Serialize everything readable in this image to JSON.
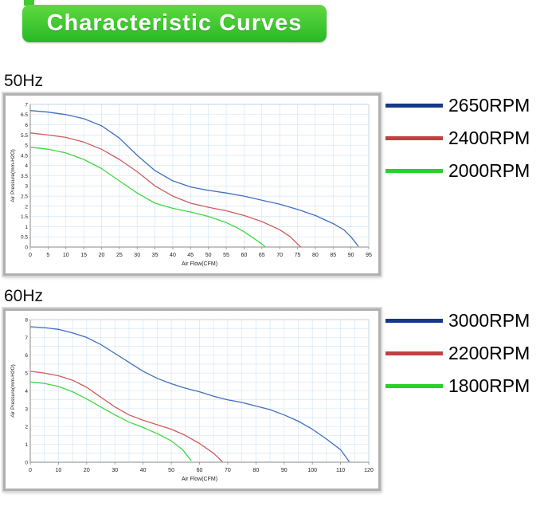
{
  "header": {
    "title": "Characteristic Curves",
    "bg_color": "#3ecb2e",
    "text_color": "#ffffff"
  },
  "sections": [
    {
      "label": "50Hz"
    },
    {
      "label": "60Hz"
    }
  ],
  "chart_data": [
    {
      "type": "line",
      "title": "50Hz",
      "xlabel": "Air Flow(CFM)",
      "ylabel": "Air Pressure(mm-H2O)",
      "xlim": [
        0,
        95
      ],
      "ylim": [
        0,
        7
      ],
      "xticks": [
        0,
        5,
        10,
        15,
        20,
        25,
        30,
        35,
        40,
        45,
        50,
        55,
        60,
        65,
        70,
        75,
        80,
        85,
        90,
        95
      ],
      "yticks": [
        0,
        0.5,
        1,
        1.5,
        2,
        2.5,
        3,
        3.5,
        4,
        4.5,
        5,
        5.5,
        6,
        6.5,
        7
      ],
      "xgrid_step": 5,
      "ygrid_step": 0.5,
      "grid_color": "#cfe3f1",
      "legend_position": "right",
      "series": [
        {
          "name": "2650RPM",
          "color": "#3f6fbf",
          "swatch_color": "#15388a",
          "points": [
            [
              0,
              6.7
            ],
            [
              5,
              6.62
            ],
            [
              10,
              6.5
            ],
            [
              15,
              6.3
            ],
            [
              20,
              5.95
            ],
            [
              25,
              5.35
            ],
            [
              30,
              4.5
            ],
            [
              35,
              3.75
            ],
            [
              40,
              3.25
            ],
            [
              45,
              2.95
            ],
            [
              50,
              2.78
            ],
            [
              55,
              2.65
            ],
            [
              60,
              2.5
            ],
            [
              65,
              2.3
            ],
            [
              70,
              2.1
            ],
            [
              75,
              1.85
            ],
            [
              80,
              1.55
            ],
            [
              85,
              1.15
            ],
            [
              88,
              0.85
            ],
            [
              90,
              0.5
            ],
            [
              92,
              0.05
            ]
          ]
        },
        {
          "name": "2400RPM",
          "color": "#d15b5b",
          "swatch_color": "#c24040",
          "points": [
            [
              0,
              5.6
            ],
            [
              5,
              5.5
            ],
            [
              10,
              5.38
            ],
            [
              15,
              5.15
            ],
            [
              20,
              4.8
            ],
            [
              25,
              4.3
            ],
            [
              30,
              3.7
            ],
            [
              35,
              3.0
            ],
            [
              40,
              2.5
            ],
            [
              45,
              2.15
            ],
            [
              50,
              1.95
            ],
            [
              55,
              1.78
            ],
            [
              60,
              1.55
            ],
            [
              65,
              1.25
            ],
            [
              70,
              0.85
            ],
            [
              73,
              0.5
            ],
            [
              75,
              0.15
            ],
            [
              76,
              0.0
            ]
          ]
        },
        {
          "name": "2000RPM",
          "color": "#3fd83f",
          "swatch_color": "#28d228",
          "points": [
            [
              0,
              4.9
            ],
            [
              5,
              4.8
            ],
            [
              10,
              4.62
            ],
            [
              15,
              4.3
            ],
            [
              20,
              3.85
            ],
            [
              25,
              3.25
            ],
            [
              30,
              2.65
            ],
            [
              35,
              2.15
            ],
            [
              40,
              1.9
            ],
            [
              45,
              1.72
            ],
            [
              50,
              1.5
            ],
            [
              55,
              1.2
            ],
            [
              58,
              0.95
            ],
            [
              60,
              0.75
            ],
            [
              63,
              0.4
            ],
            [
              65,
              0.15
            ],
            [
              66,
              0.0
            ]
          ]
        }
      ]
    },
    {
      "type": "line",
      "title": "60Hz",
      "xlabel": "Air Flow(CFM)",
      "ylabel": "Air Pressure(mm-H2O)",
      "xlim": [
        0,
        120
      ],
      "ylim": [
        0,
        8
      ],
      "xticks": [
        0,
        10,
        20,
        30,
        40,
        50,
        60,
        70,
        80,
        90,
        100,
        110,
        120
      ],
      "yticks": [
        0,
        1,
        2,
        3,
        4,
        5,
        6,
        7,
        8
      ],
      "xgrid_step": 5,
      "ygrid_step": 0.5,
      "grid_color": "#cfe3f1",
      "legend_position": "right",
      "series": [
        {
          "name": "3000RPM",
          "color": "#3f6fbf",
          "swatch_color": "#15388a",
          "points": [
            [
              0,
              7.6
            ],
            [
              5,
              7.55
            ],
            [
              10,
              7.45
            ],
            [
              15,
              7.25
            ],
            [
              20,
              7.0
            ],
            [
              25,
              6.6
            ],
            [
              30,
              6.1
            ],
            [
              35,
              5.6
            ],
            [
              40,
              5.1
            ],
            [
              45,
              4.7
            ],
            [
              50,
              4.4
            ],
            [
              55,
              4.15
            ],
            [
              60,
              3.95
            ],
            [
              65,
              3.7
            ],
            [
              70,
              3.5
            ],
            [
              75,
              3.35
            ],
            [
              80,
              3.15
            ],
            [
              85,
              2.95
            ],
            [
              90,
              2.65
            ],
            [
              95,
              2.3
            ],
            [
              100,
              1.85
            ],
            [
              105,
              1.3
            ],
            [
              110,
              0.7
            ],
            [
              113,
              0.05
            ]
          ]
        },
        {
          "name": "2200RPM",
          "color": "#d15b5b",
          "swatch_color": "#c24040",
          "points": [
            [
              0,
              5.1
            ],
            [
              5,
              5.0
            ],
            [
              10,
              4.85
            ],
            [
              15,
              4.6
            ],
            [
              20,
              4.2
            ],
            [
              25,
              3.65
            ],
            [
              30,
              3.1
            ],
            [
              35,
              2.65
            ],
            [
              40,
              2.35
            ],
            [
              45,
              2.1
            ],
            [
              50,
              1.85
            ],
            [
              55,
              1.5
            ],
            [
              60,
              1.05
            ],
            [
              65,
              0.5
            ],
            [
              68,
              0.05
            ]
          ]
        },
        {
          "name": "1800RPM",
          "color": "#3fd83f",
          "swatch_color": "#28d228",
          "points": [
            [
              0,
              4.5
            ],
            [
              5,
              4.42
            ],
            [
              10,
              4.25
            ],
            [
              15,
              3.95
            ],
            [
              20,
              3.55
            ],
            [
              25,
              3.1
            ],
            [
              30,
              2.65
            ],
            [
              35,
              2.25
            ],
            [
              40,
              1.95
            ],
            [
              45,
              1.6
            ],
            [
              50,
              1.2
            ],
            [
              54,
              0.7
            ],
            [
              57,
              0.1
            ]
          ]
        }
      ]
    }
  ]
}
